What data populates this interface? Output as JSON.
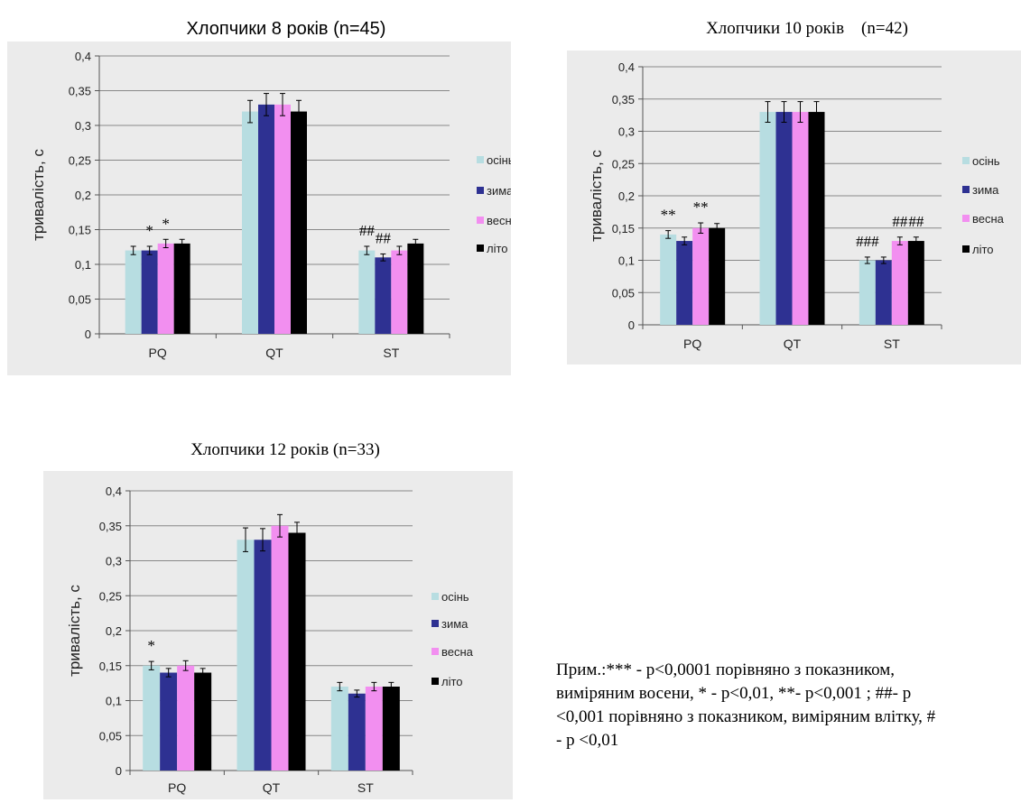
{
  "colors": {
    "осінь": "#b7dde1",
    "зима": "#2e3192",
    "весна": "#f28ff0",
    "літо": "#000000",
    "panel_bg": "#ebebeb",
    "grid": "#888888"
  },
  "chart_data": [
    {
      "type": "bar",
      "title": "Хлопчики 8 років (n=45)",
      "categories": [
        "PQ",
        "QT",
        "ST"
      ],
      "ylabel": "тривалість, с",
      "ylim": [
        0,
        0.4
      ],
      "yticks": [
        "0",
        "0,05",
        "0,1",
        "0,15",
        "0,2",
        "0,25",
        "0,3",
        "0,35",
        "0,4"
      ],
      "legend_position": "right",
      "grid": true,
      "series": [
        {
          "name": "осінь",
          "values": [
            0.12,
            0.32,
            0.12
          ],
          "errors": [
            0.006,
            0.016,
            0.006
          ]
        },
        {
          "name": "зима",
          "values": [
            0.12,
            0.33,
            0.11
          ],
          "errors": [
            0.006,
            0.016,
            0.005
          ]
        },
        {
          "name": "весна",
          "values": [
            0.13,
            0.33,
            0.12
          ],
          "errors": [
            0.006,
            0.016,
            0.006
          ]
        },
        {
          "name": "літо",
          "values": [
            0.13,
            0.32,
            0.13
          ],
          "errors": [
            0.006,
            0.016,
            0.006
          ]
        }
      ],
      "annotations": [
        {
          "category": "PQ",
          "series": "зима",
          "text": "*"
        },
        {
          "category": "PQ",
          "series": "весна",
          "text": "*"
        },
        {
          "category": "ST",
          "series": "осінь",
          "text": "##"
        },
        {
          "category": "ST",
          "series": "зима",
          "text": "##"
        }
      ]
    },
    {
      "type": "bar",
      "title": "Хлопчики 10 років    (n=42)",
      "categories": [
        "PQ",
        "QT",
        "ST"
      ],
      "ylabel": "тривалість, с",
      "ylim": [
        0,
        0.4
      ],
      "yticks": [
        "0",
        "0,05",
        "0,1",
        "0,15",
        "0,2",
        "0,25",
        "0,3",
        "0,35",
        "0,4"
      ],
      "legend_position": "right",
      "grid": true,
      "series": [
        {
          "name": "осінь",
          "values": [
            0.14,
            0.33,
            0.1
          ],
          "errors": [
            0.006,
            0.016,
            0.005
          ]
        },
        {
          "name": "зима",
          "values": [
            0.13,
            0.33,
            0.1
          ],
          "errors": [
            0.006,
            0.016,
            0.005
          ]
        },
        {
          "name": "весна",
          "values": [
            0.15,
            0.33,
            0.13
          ],
          "errors": [
            0.008,
            0.016,
            0.006
          ]
        },
        {
          "name": "літо",
          "values": [
            0.15,
            0.33,
            0.13
          ],
          "errors": [
            0.007,
            0.016,
            0.006
          ]
        }
      ],
      "annotations": [
        {
          "category": "PQ",
          "series": "осінь",
          "text": "**"
        },
        {
          "category": "PQ",
          "series": "весна",
          "text": "**"
        },
        {
          "category": "ST",
          "series": "осінь",
          "text": "###"
        },
        {
          "category": "ST",
          "series": "весна",
          "text": "##"
        },
        {
          "category": "ST",
          "series": "літо",
          "text": "##"
        }
      ]
    },
    {
      "type": "bar",
      "title": "Хлопчики 12 років (n=33)",
      "categories": [
        "PQ",
        "QT",
        "ST"
      ],
      "ylabel": "тривалість, с",
      "ylim": [
        0,
        0.4
      ],
      "yticks": [
        "0",
        "0,05",
        "0,1",
        "0,15",
        "0,2",
        "0,25",
        "0,3",
        "0,35",
        "0,4"
      ],
      "legend_position": "right",
      "grid": true,
      "series": [
        {
          "name": "осінь",
          "values": [
            0.15,
            0.33,
            0.12
          ],
          "errors": [
            0.006,
            0.017,
            0.006
          ]
        },
        {
          "name": "зима",
          "values": [
            0.14,
            0.33,
            0.11
          ],
          "errors": [
            0.006,
            0.016,
            0.005
          ]
        },
        {
          "name": "весна",
          "values": [
            0.15,
            0.35,
            0.12
          ],
          "errors": [
            0.007,
            0.016,
            0.006
          ]
        },
        {
          "name": "літо",
          "values": [
            0.14,
            0.34,
            0.12
          ],
          "errors": [
            0.006,
            0.015,
            0.006
          ]
        }
      ],
      "annotations": [
        {
          "category": "PQ",
          "series": "осінь",
          "text": "*"
        }
      ]
    }
  ],
  "note": {
    "lines": [
      "Прим.:*** -  p<0,0001 порівняно з показником,",
      "виміряним восени, * -  p<0,01, **-  p<0,001 ; ##- p",
      "<0,001 порівняно з показником,  виміряним влітку, #",
      "- p <0,01"
    ]
  }
}
